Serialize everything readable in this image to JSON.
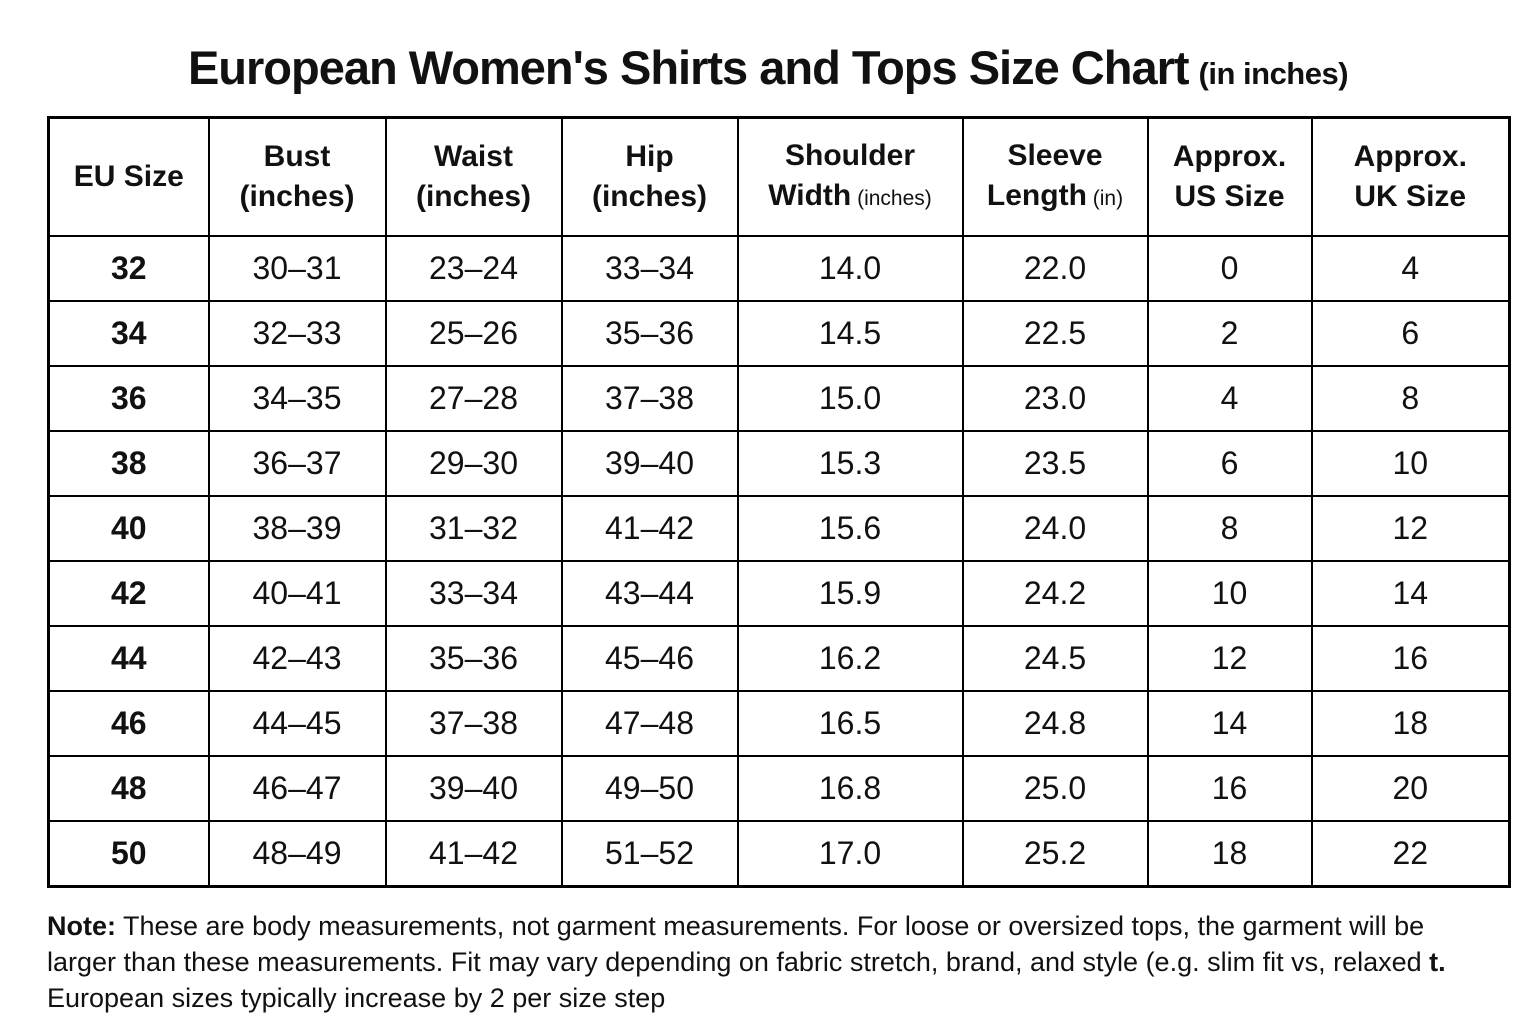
{
  "title": {
    "main": "European Women's Shirts and Tops Size Chart",
    "suffix": "(in inches)"
  },
  "table": {
    "field_names": [
      "eu_size",
      "bust",
      "waist",
      "hip",
      "shoulder_width",
      "sleeve_length",
      "us_size",
      "uk_size"
    ],
    "columns": [
      {
        "line1": "EU Size",
        "line2": "",
        "suffix": ""
      },
      {
        "line1": "Bust",
        "line2": "(inches)",
        "suffix": ""
      },
      {
        "line1": "Waist",
        "line2": "(inches)",
        "suffix": ""
      },
      {
        "line1": "Hip",
        "line2": "(inches)",
        "suffix": ""
      },
      {
        "line1": "Shoulder",
        "line2": "Width",
        "suffix": "(inches)"
      },
      {
        "line1": "Sleeve",
        "line2": "Length",
        "suffix": "(in)"
      },
      {
        "line1": "Approx.",
        "line2": "US Size",
        "suffix": ""
      },
      {
        "line1": "Approx.",
        "line2": "UK Size",
        "suffix": ""
      }
    ],
    "rows": [
      [
        "32",
        "30–31",
        "23–24",
        "33–34",
        "14.0",
        "22.0",
        "0",
        "4"
      ],
      [
        "34",
        "32–33",
        "25–26",
        "35–36",
        "14.5",
        "22.5",
        "2",
        "6"
      ],
      [
        "36",
        "34–35",
        "27–28",
        "37–38",
        "15.0",
        "23.0",
        "4",
        "8"
      ],
      [
        "38",
        "36–37",
        "29–30",
        "39–40",
        "15.3",
        "23.5",
        "6",
        "10"
      ],
      [
        "40",
        "38–39",
        "31–32",
        "41–42",
        "15.6",
        "24.0",
        "8",
        "12"
      ],
      [
        "42",
        "40–41",
        "33–34",
        "43–44",
        "15.9",
        "24.2",
        "10",
        "14"
      ],
      [
        "44",
        "42–43",
        "35–36",
        "45–46",
        "16.2",
        "24.5",
        "12",
        "16"
      ],
      [
        "46",
        "44–45",
        "37–38",
        "47–48",
        "16.5",
        "24.8",
        "14",
        "18"
      ],
      [
        "48",
        "46–47",
        "39–40",
        "49–50",
        "16.8",
        "25.0",
        "16",
        "20"
      ],
      [
        "50",
        "48–49",
        "41–42",
        "51–52",
        "17.0",
        "25.2",
        "18",
        "22"
      ]
    ]
  },
  "note": {
    "label": "Note:",
    "line1": "These are body measurements, not garment measurements. For loose or oversized tops, the garment will be",
    "line2": "larger than these measurements. Fit may vary depending on fabric stretch, brand, and style (e.g. slim fit vs, relaxed",
    "line2_bold": "t.",
    "line3": "European sizes typically increase by 2 per size step"
  },
  "chart_data": {
    "type": "table",
    "title": "European Women's Shirts and Tops Size Chart (in inches)",
    "columns": [
      "EU Size",
      "Bust (inches)",
      "Waist (inches)",
      "Hip (inches)",
      "Shoulder Width (inches)",
      "Sleeve Length (in)",
      "Approx. US Size",
      "Approx. UK Size"
    ],
    "rows": [
      [
        "32",
        "30–31",
        "23–24",
        "33–34",
        "14.0",
        "22.0",
        "0",
        "4"
      ],
      [
        "34",
        "32–33",
        "25–26",
        "35–36",
        "14.5",
        "22.5",
        "2",
        "6"
      ],
      [
        "36",
        "34–35",
        "27–28",
        "37–38",
        "15.0",
        "23.0",
        "4",
        "8"
      ],
      [
        "38",
        "36–37",
        "29–30",
        "39–40",
        "15.3",
        "23.5",
        "6",
        "10"
      ],
      [
        "40",
        "38–39",
        "31–32",
        "41–42",
        "15.6",
        "24.0",
        "8",
        "12"
      ],
      [
        "42",
        "40–41",
        "33–34",
        "43–44",
        "15.9",
        "24.2",
        "10",
        "14"
      ],
      [
        "44",
        "42–43",
        "35–36",
        "45–46",
        "16.2",
        "24.5",
        "12",
        "16"
      ],
      [
        "46",
        "44–45",
        "37–38",
        "47–48",
        "16.5",
        "24.8",
        "14",
        "18"
      ],
      [
        "48",
        "46–47",
        "39–40",
        "49–50",
        "16.8",
        "25.0",
        "16",
        "20"
      ],
      [
        "50",
        "48–49",
        "41–42",
        "51–52",
        "17.0",
        "25.2",
        "18",
        "22"
      ]
    ]
  }
}
